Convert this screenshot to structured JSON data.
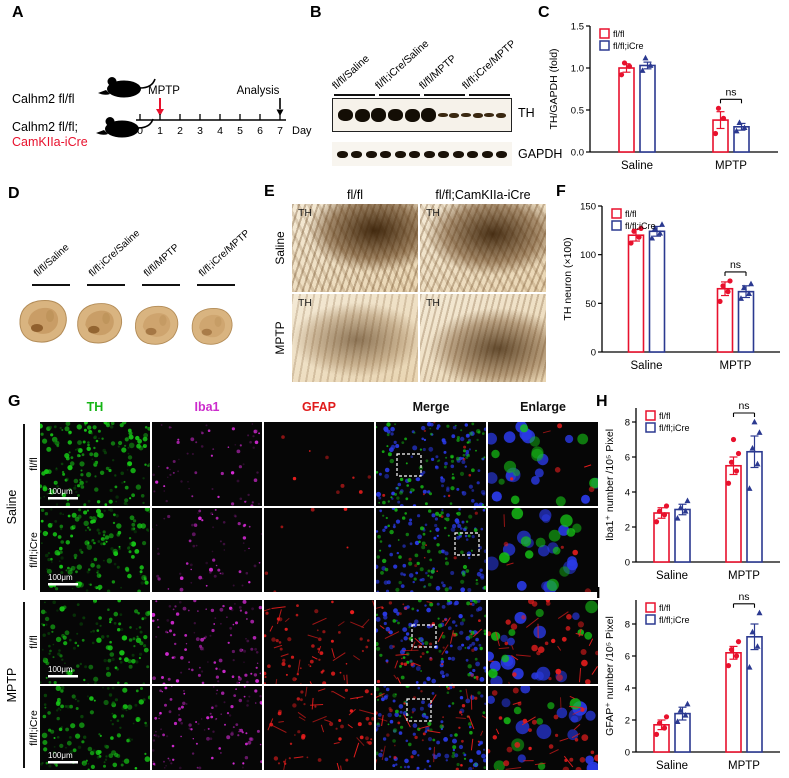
{
  "panels": {
    "A": "A",
    "B": "B",
    "C": "C",
    "D": "D",
    "E": "E",
    "F": "F",
    "G": "G",
    "H": "H",
    "I": "I"
  },
  "panelA": {
    "mouse1": "Calhm2 fl/fl",
    "mouse2a": "Calhm2 fl/fl;",
    "mouse2b": "CamKIIa-iCre",
    "mptp": "MPTP",
    "analysis": "Analysis",
    "day": "Day",
    "days": [
      "0",
      "1",
      "2",
      "3",
      "4",
      "5",
      "6",
      "7"
    ]
  },
  "panelB": {
    "lanes": [
      "fl/fl/Saline",
      "fl/fl;iCre/Saline",
      "fl/fl/MPTP",
      "fl/fl;iCre/MPTP"
    ],
    "th": "TH",
    "gapdh": "GAPDH"
  },
  "panelD": {
    "lanes": [
      "fl/fl/Saline",
      "fl/fl;iCre/Saline",
      "fl/fl/MPTP",
      "fl/fl;iCre/MPTP"
    ]
  },
  "panelE": {
    "col1": "fl/fl",
    "col2": "fl/fl;CamKIIa-iCre",
    "row1": "Saline",
    "row2": "MPTP",
    "stain": "TH"
  },
  "panelG": {
    "columns": [
      "TH",
      "Iba1",
      "GFAP",
      "Merge",
      "Enlarge"
    ],
    "col_colors": [
      "#15b515",
      "#cc2ccc",
      "#e01b1b",
      "#111111",
      "#111111"
    ],
    "group1": "Saline",
    "group2": "MPTP",
    "rows": [
      "fl/fl",
      "fl/fl;iCre",
      "fl/fl",
      "fl/fl;iCre"
    ],
    "scalebar": "100μm"
  },
  "colors": {
    "red": "#e8112d",
    "blue": "#2b3990"
  },
  "chart_data": [
    {
      "panel": "C",
      "type": "bar",
      "ylabel": "TH/GAPDH (fold)",
      "categories": [
        "Saline",
        "MPTP"
      ],
      "series": [
        {
          "name": "fl/fl",
          "color": "#e8112d",
          "marker": "circle",
          "values": [
            1.0,
            0.38
          ],
          "errors": [
            0.05,
            0.1
          ],
          "points": [
            [
              0.92,
              1.02,
              1.06
            ],
            [
              0.22,
              0.4,
              0.52
            ]
          ]
        },
        {
          "name": "fl/fl;iCre",
          "color": "#2b3990",
          "marker": "triangle",
          "values": [
            1.03,
            0.3
          ],
          "errors": [
            0.04,
            0.04
          ],
          "points": [
            [
              0.97,
              1.03,
              1.12
            ],
            [
              0.25,
              0.29,
              0.35
            ]
          ]
        }
      ],
      "ylim": [
        0,
        1.5
      ],
      "yticks": [
        0,
        0.5,
        1,
        1.5
      ],
      "ytick_labels": [
        "0.0",
        "0.5",
        "1.0",
        "1.5"
      ],
      "legend": true,
      "grid": false,
      "legend_position": "top-left",
      "annotation": {
        "text": "ns",
        "category": 1
      }
    },
    {
      "panel": "F",
      "type": "bar",
      "ylabel": "TH neuron (×100)",
      "categories": [
        "Saline",
        "MPTP"
      ],
      "series": [
        {
          "name": "fl/fl",
          "color": "#e8112d",
          "marker": "circle",
          "values": [
            120,
            65
          ],
          "errors": [
            6,
            7
          ],
          "points": [
            [
              112,
              118,
              124,
              127
            ],
            [
              52,
              62,
              68,
              73
            ]
          ]
        },
        {
          "name": "fl/fl;iCre",
          "color": "#2b3990",
          "marker": "triangle",
          "values": [
            124,
            62
          ],
          "errors": [
            5,
            6
          ],
          "points": [
            [
              117,
              122,
              127,
              131
            ],
            [
              55,
              60,
              66,
              70
            ]
          ]
        }
      ],
      "ylim": [
        0,
        150
      ],
      "yticks": [
        0,
        50,
        100,
        150
      ],
      "ytick_labels": [
        "0",
        "50",
        "100",
        "150"
      ],
      "legend": true,
      "grid": false,
      "legend_position": "top-left",
      "annotation": {
        "text": "ns",
        "category": 1
      }
    },
    {
      "panel": "H",
      "type": "bar",
      "ylabel": "Iba1⁺ number /10⁵ Pixel",
      "categories": [
        "Saline",
        "MPTP"
      ],
      "series": [
        {
          "name": "fl/fl",
          "color": "#e8112d",
          "marker": "circle",
          "values": [
            2.8,
            5.5
          ],
          "errors": [
            0.3,
            0.5
          ],
          "points": [
            [
              2.3,
              2.7,
              2.9,
              3.2
            ],
            [
              4.5,
              5.2,
              5.7,
              6.2,
              7.0
            ]
          ]
        },
        {
          "name": "fl/fl;iCre",
          "color": "#2b3990",
          "marker": "triangle",
          "values": [
            3.0,
            6.3
          ],
          "errors": [
            0.3,
            0.9
          ],
          "points": [
            [
              2.5,
              2.9,
              3.1,
              3.5
            ],
            [
              4.2,
              5.6,
              6.5,
              7.4,
              8.0
            ]
          ]
        }
      ],
      "ylim": [
        0,
        8.8
      ],
      "yticks": [
        0,
        2,
        4,
        6,
        8
      ],
      "ytick_labels": [
        "0",
        "2",
        "4",
        "6",
        "8"
      ],
      "legend": true,
      "grid": false,
      "legend_position": "top-left",
      "annotation": {
        "text": "ns",
        "category": 1
      }
    },
    {
      "panel": "I",
      "type": "bar",
      "ylabel": "GFAP⁺ number /10⁵ Pixel",
      "categories": [
        "Saline",
        "MPTP"
      ],
      "series": [
        {
          "name": "fl/fl",
          "color": "#e8112d",
          "marker": "circle",
          "values": [
            1.7,
            6.2
          ],
          "errors": [
            0.3,
            0.4
          ],
          "points": [
            [
              1.1,
              1.5,
              1.8,
              2.2
            ],
            [
              5.4,
              6.0,
              6.4,
              6.9
            ]
          ]
        },
        {
          "name": "fl/fl;iCre",
          "color": "#2b3990",
          "marker": "triangle",
          "values": [
            2.4,
            7.2
          ],
          "errors": [
            0.4,
            0.8
          ],
          "points": [
            [
              1.9,
              2.3,
              2.6,
              3.0
            ],
            [
              5.3,
              6.6,
              7.5,
              8.7
            ]
          ]
        }
      ],
      "ylim": [
        0,
        9.5
      ],
      "yticks": [
        0,
        2,
        4,
        6,
        8
      ],
      "ytick_labels": [
        "0",
        "2",
        "4",
        "6",
        "8"
      ],
      "legend": true,
      "grid": false,
      "legend_position": "top-left",
      "annotation": {
        "text": "ns",
        "category": 1
      }
    }
  ]
}
